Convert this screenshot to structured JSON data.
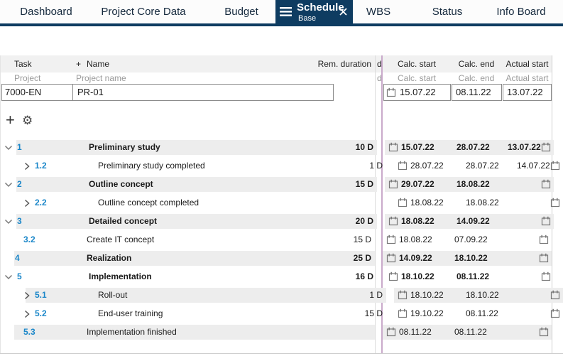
{
  "colors": {
    "accent": "#0e3c61",
    "number_blue": "#1b87c9",
    "splitter": "#c9aacb",
    "row_shade": "#ededed",
    "header_bg": "#f1f1f1"
  },
  "tabs": {
    "items": [
      {
        "label": "Dashboard"
      },
      {
        "label": "Project Core Data"
      },
      {
        "label": "Budget"
      },
      {
        "label": "Schedule",
        "sublabel": "Base",
        "active": true
      },
      {
        "label": "WBS"
      },
      {
        "label": "Status"
      },
      {
        "label": "Info Board"
      }
    ]
  },
  "table": {
    "headers": {
      "task": "Task",
      "name_plus": "+",
      "name": "Name",
      "rem_duration": "Rem. duration",
      "clipped": "d",
      "calc_start": "Calc. start",
      "calc_end": "Calc. end",
      "actual_start": "Actual start"
    },
    "subheaders": {
      "project": "Project",
      "project_name": "Project name",
      "clipped": "d",
      "calc_start": "Calc. start",
      "calc_end": "Calc. end",
      "actual_start": "Actual start"
    },
    "project_row": {
      "id": "7000-EN",
      "name": "PR-01",
      "calc_start": "15.07.22",
      "calc_end": "08.11.22",
      "actual_start": "13.07.22"
    }
  },
  "toolbar": {
    "add_label": "+",
    "gear_glyph": "⚙"
  },
  "rows": [
    {
      "num": "1",
      "name": "Preliminary study",
      "duration": "10 D",
      "calc_start": "15.07.22",
      "calc_end": "28.07.22",
      "actual_start": "13.07.22",
      "level": 0,
      "chevron": "down",
      "bold": true,
      "shaded": true
    },
    {
      "num": "1.2",
      "name": "Preliminary study completed",
      "duration": "1 D",
      "calc_start": "28.07.22",
      "calc_end": "28.07.22",
      "actual_start": "14.07.22",
      "level": 1,
      "chevron": "right",
      "bold": false,
      "shaded": false
    },
    {
      "num": "2",
      "name": "Outline concept",
      "duration": "15 D",
      "calc_start": "29.07.22",
      "calc_end": "18.08.22",
      "actual_start": "",
      "level": 0,
      "chevron": "down",
      "bold": true,
      "shaded": true
    },
    {
      "num": "2.2",
      "name": "Outline concept completed",
      "duration": "",
      "calc_start": "18.08.22",
      "calc_end": "18.08.22",
      "actual_start": "",
      "level": 1,
      "chevron": "right",
      "bold": false,
      "shaded": false
    },
    {
      "num": "3",
      "name": "Detailed concept",
      "duration": "20 D",
      "calc_start": "18.08.22",
      "calc_end": "14.09.22",
      "actual_start": "",
      "level": 0,
      "chevron": "down",
      "bold": true,
      "shaded": true
    },
    {
      "num": "3.2",
      "name": "Create IT concept",
      "duration": "15 D",
      "calc_start": "18.08.22",
      "calc_end": "07.09.22",
      "actual_start": "",
      "level": 1,
      "chevron": "none",
      "bold": false,
      "shaded": false
    },
    {
      "num": "4",
      "name": "Realization",
      "duration": "25 D",
      "calc_start": "14.09.22",
      "calc_end": "18.10.22",
      "actual_start": "",
      "level": 0,
      "chevron": "none",
      "bold": true,
      "shaded": true
    },
    {
      "num": "5",
      "name": "Implementation",
      "duration": "16 D",
      "calc_start": "18.10.22",
      "calc_end": "08.11.22",
      "actual_start": "",
      "level": 0,
      "chevron": "down",
      "bold": true,
      "shaded": false
    },
    {
      "num": "5.1",
      "name": "Roll-out",
      "duration": "1 D",
      "calc_start": "18.10.22",
      "calc_end": "18.10.22",
      "actual_start": "",
      "level": 1,
      "chevron": "right",
      "bold": false,
      "shaded": true
    },
    {
      "num": "5.2",
      "name": "End-user training",
      "duration": "15 D",
      "calc_start": "19.10.22",
      "calc_end": "08.11.22",
      "actual_start": "",
      "level": 1,
      "chevron": "right",
      "bold": false,
      "shaded": false
    },
    {
      "num": "5.3",
      "name": "Implementation finished",
      "duration": "",
      "calc_start": "08.11.22",
      "calc_end": "08.11.22",
      "actual_start": "",
      "level": 1,
      "chevron": "none",
      "bold": false,
      "shaded": true
    }
  ]
}
